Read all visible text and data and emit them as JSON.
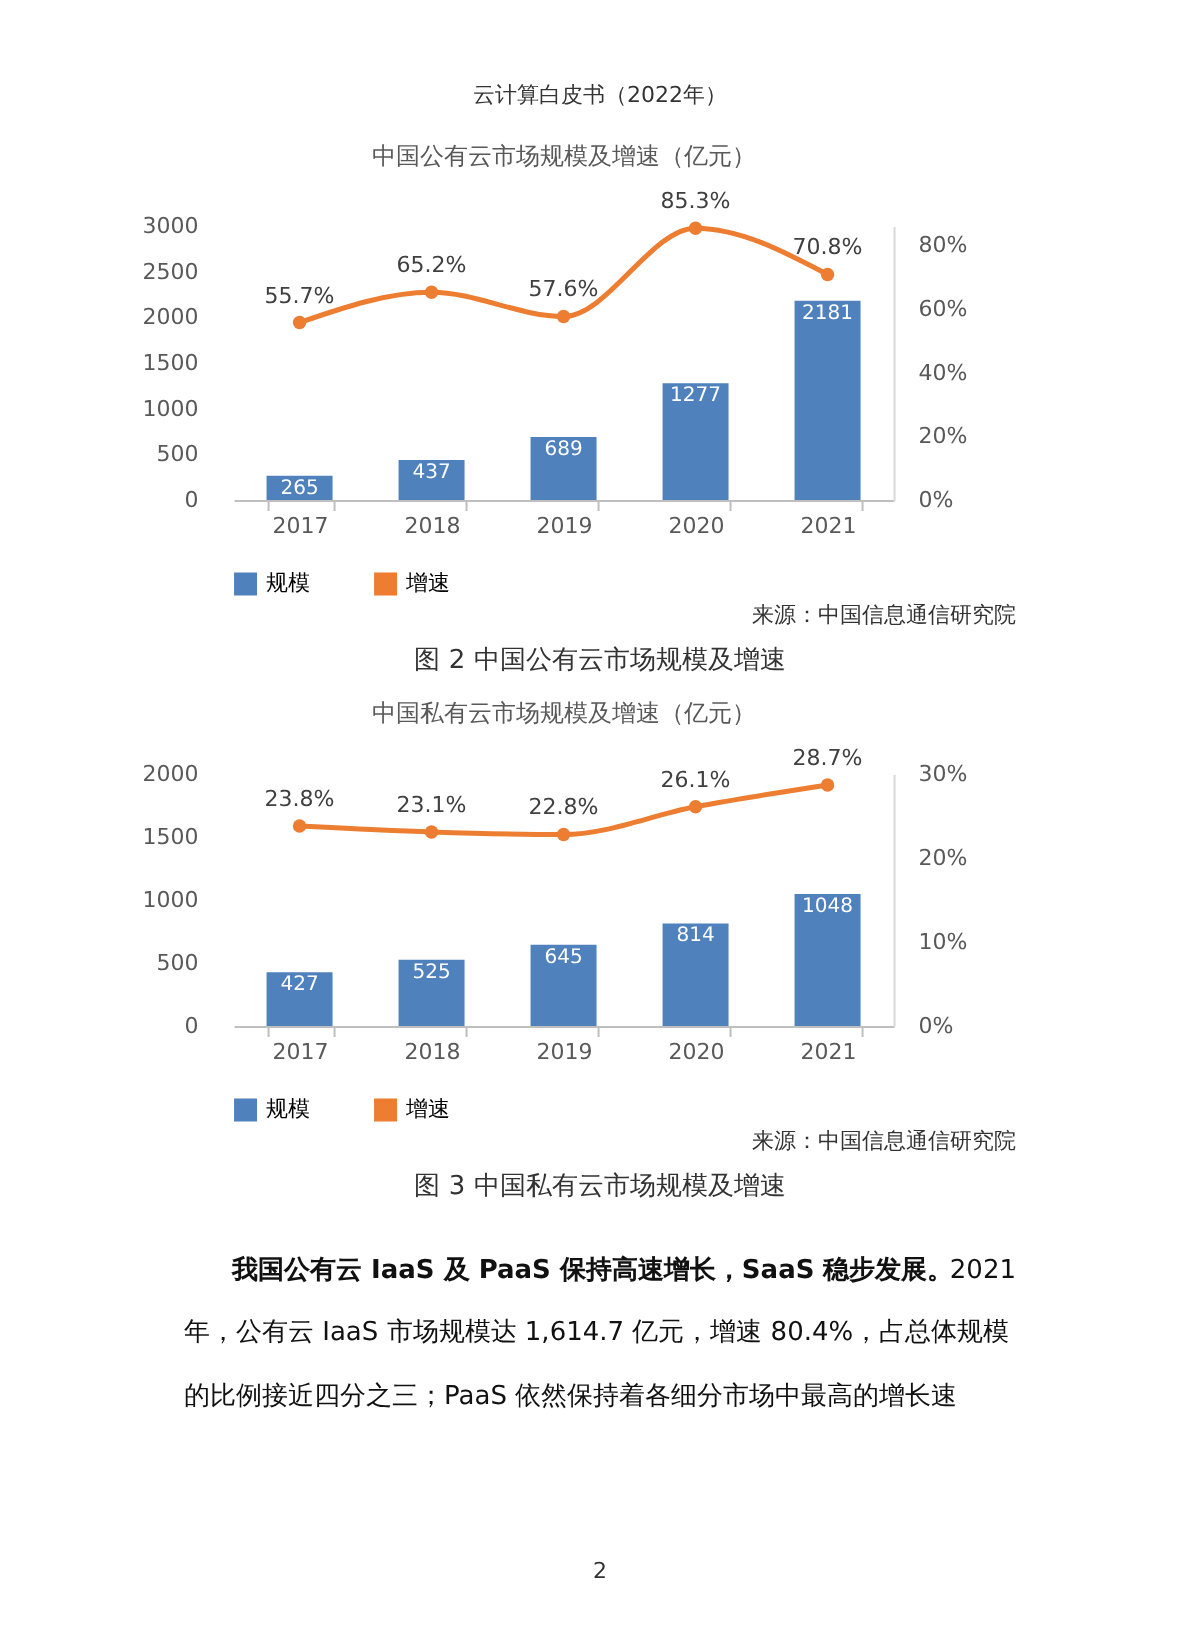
{
  "chart_data": [
    {
      "type": "bar",
      "title": "中国公有云市场规模及增速（亿元）",
      "categories": [
        "2017",
        "2018",
        "2019",
        "2020",
        "2021"
      ],
      "series": [
        {
          "name": "规模",
          "color": "#4f81bd",
          "values": [
            265,
            437,
            689,
            1277,
            2181
          ],
          "value_labels": [
            "265",
            "437",
            "689",
            "1277",
            "2181"
          ]
        },
        {
          "name": "增速",
          "type": "line",
          "axis": "y2",
          "color": "#ed7d31",
          "marker": "circle",
          "line_style": "solid",
          "values": [
            55.7,
            65.2,
            57.6,
            85.3,
            70.8
          ],
          "value_labels": [
            "55.7%",
            "65.2%",
            "57.6%",
            "85.3%",
            "70.8%"
          ]
        }
      ],
      "ylim": [
        0,
        3000
      ],
      "yticks": [
        0,
        500,
        1000,
        1500,
        2000,
        2500,
        3000
      ],
      "y2lim": [
        0,
        86
      ],
      "y2ticks": [
        {
          "value": 0,
          "label": "0%"
        },
        {
          "value": 20,
          "label": "20%"
        },
        {
          "value": 40,
          "label": "40%"
        },
        {
          "value": 60,
          "label": "60%"
        },
        {
          "value": 80,
          "label": "80%"
        }
      ],
      "legend": "bottom",
      "grid": false,
      "annotations": [
        "云计算白皮书（2022年）",
        "来源：中国信息通信研究院",
        "图 2  中国公有云市场规模及增速"
      ]
    },
    {
      "type": "bar",
      "title": "中国私有云市场规模及增速（亿元）",
      "categories": [
        "2017",
        "2018",
        "2019",
        "2020",
        "2021"
      ],
      "series": [
        {
          "name": "规模",
          "color": "#4f81bd",
          "values": [
            427,
            525,
            645,
            814,
            1048
          ],
          "value_labels": [
            "427",
            "525",
            "645",
            "814",
            "1048"
          ]
        },
        {
          "name": "增速",
          "type": "line",
          "axis": "y2",
          "color": "#ed7d31",
          "marker": "circle",
          "line_style": "solid",
          "values": [
            23.8,
            23.1,
            22.8,
            26.1,
            28.7
          ],
          "value_labels": [
            "23.8%",
            "23.1%",
            "22.8%",
            "26.1%",
            "28.7%"
          ]
        }
      ],
      "ylim": [
        0,
        2000
      ],
      "yticks": [
        0,
        500,
        1000,
        1500,
        2000
      ],
      "y2lim": [
        0,
        30
      ],
      "y2ticks": [
        {
          "value": 0,
          "label": "0%"
        },
        {
          "value": 10,
          "label": "10%"
        },
        {
          "value": 20,
          "label": "20%"
        },
        {
          "value": 30,
          "label": "30%"
        }
      ],
      "legend": "bottom",
      "grid": false,
      "annotations": [
        "来源：中国信息通信研究院",
        "图 3  中国私有云市场规模及增速",
        "我国公有云 IaaS 及 PaaS 保持高速增长，SaaS 稳步发展。",
        "2021",
        "年，公有云 IaaS 市场规模达 1,614.7 亿元，增速 80.4%，占总体规模",
        "的比例接近四分之三；PaaS 依然保持着各细分市场中最高的增长速",
        "2"
      ]
    }
  ]
}
